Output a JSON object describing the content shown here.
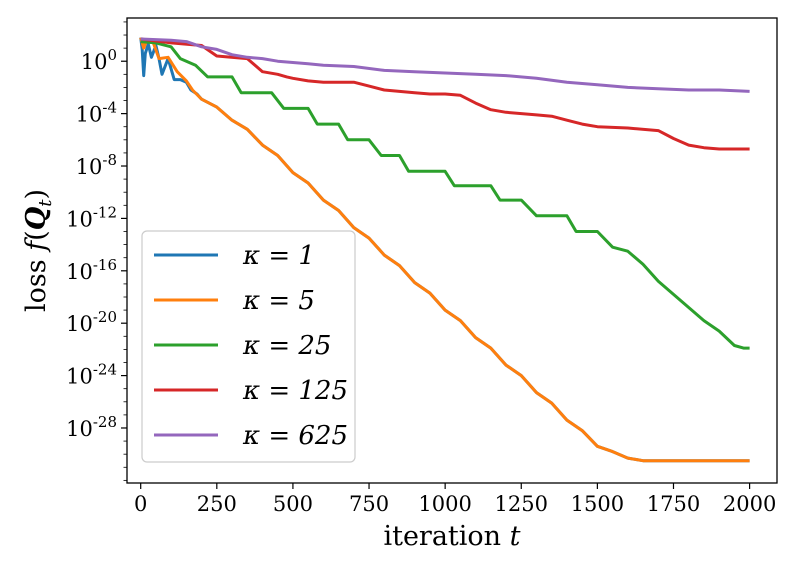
{
  "chart_data": {
    "type": "line",
    "xlabel": "iteration t",
    "ylabel": "loss f(Q_t)",
    "xlim": [
      -45,
      2090
    ],
    "ylim_log10": [
      -32.2,
      3.3
    ],
    "y_scale": "log",
    "grid": false,
    "legend_position": "bottom-left",
    "x_ticks": [
      0,
      250,
      500,
      750,
      1000,
      1250,
      1500,
      1750,
      2000
    ],
    "y_ticks": [
      {
        "exp": 0,
        "label": "10^0"
      },
      {
        "exp": -4,
        "label": "10^-4"
      },
      {
        "exp": -8,
        "label": "10^-8"
      },
      {
        "exp": -12,
        "label": "10^-12"
      },
      {
        "exp": -16,
        "label": "10^-16"
      },
      {
        "exp": -20,
        "label": "10^-20"
      },
      {
        "exp": -24,
        "label": "10^-24"
      },
      {
        "exp": -28,
        "label": "10^-28"
      }
    ],
    "series": [
      {
        "name": "κ = 1",
        "color": "#1f77b4",
        "points": [
          [
            0,
            1.8
          ],
          [
            5,
            0.9
          ],
          [
            10,
            -1.1
          ],
          [
            15,
            0.6
          ],
          [
            25,
            1.3
          ],
          [
            35,
            0.3
          ],
          [
            50,
            1.2
          ],
          [
            60,
            0.2
          ],
          [
            70,
            -1.0
          ],
          [
            90,
            0.2
          ],
          [
            110,
            -1.4
          ],
          [
            130,
            -1.4
          ],
          [
            150,
            -1.6
          ],
          [
            165,
            -2.2
          ],
          [
            185,
            -2.5
          ],
          [
            200,
            -2.9
          ],
          [
            250,
            -3.5
          ],
          [
            300,
            -4.5
          ],
          [
            350,
            -5.2
          ],
          [
            400,
            -6.4
          ],
          [
            450,
            -7.2
          ],
          [
            500,
            -8.5
          ],
          [
            550,
            -9.3
          ],
          [
            600,
            -10.6
          ],
          [
            650,
            -11.4
          ],
          [
            700,
            -12.7
          ],
          [
            750,
            -13.5
          ],
          [
            800,
            -14.8
          ],
          [
            850,
            -15.6
          ],
          [
            900,
            -16.9
          ],
          [
            950,
            -17.7
          ],
          [
            1000,
            -19.0
          ],
          [
            1050,
            -19.8
          ],
          [
            1100,
            -21.1
          ],
          [
            1150,
            -21.9
          ],
          [
            1200,
            -23.2
          ],
          [
            1250,
            -24.0
          ],
          [
            1300,
            -25.3
          ],
          [
            1350,
            -26.1
          ],
          [
            1400,
            -27.4
          ],
          [
            1450,
            -28.2
          ],
          [
            1500,
            -29.4
          ],
          [
            1550,
            -29.8
          ],
          [
            1600,
            -30.3
          ],
          [
            1650,
            -30.5
          ],
          [
            1700,
            -30.5
          ],
          [
            1800,
            -30.5
          ],
          [
            1900,
            -30.5
          ],
          [
            2000,
            -30.5
          ]
        ]
      },
      {
        "name": "κ = 5",
        "color": "#ff7f0e",
        "points": [
          [
            0,
            1.8
          ],
          [
            10,
            1.0
          ],
          [
            20,
            1.6
          ],
          [
            40,
            1.5
          ],
          [
            60,
            0.2
          ],
          [
            90,
            0.3
          ],
          [
            120,
            -0.8
          ],
          [
            150,
            -1.5
          ],
          [
            170,
            -2.2
          ],
          [
            200,
            -2.9
          ],
          [
            250,
            -3.5
          ],
          [
            300,
            -4.5
          ],
          [
            350,
            -5.2
          ],
          [
            400,
            -6.4
          ],
          [
            450,
            -7.2
          ],
          [
            500,
            -8.5
          ],
          [
            550,
            -9.3
          ],
          [
            600,
            -10.6
          ],
          [
            650,
            -11.4
          ],
          [
            700,
            -12.7
          ],
          [
            750,
            -13.5
          ],
          [
            800,
            -14.8
          ],
          [
            850,
            -15.6
          ],
          [
            900,
            -16.9
          ],
          [
            950,
            -17.7
          ],
          [
            1000,
            -19.0
          ],
          [
            1050,
            -19.8
          ],
          [
            1100,
            -21.1
          ],
          [
            1150,
            -21.9
          ],
          [
            1200,
            -23.2
          ],
          [
            1250,
            -24.0
          ],
          [
            1300,
            -25.3
          ],
          [
            1350,
            -26.1
          ],
          [
            1400,
            -27.4
          ],
          [
            1450,
            -28.2
          ],
          [
            1500,
            -29.4
          ],
          [
            1550,
            -29.8
          ],
          [
            1600,
            -30.3
          ],
          [
            1650,
            -30.5
          ],
          [
            1700,
            -30.5
          ],
          [
            1800,
            -30.5
          ],
          [
            1900,
            -30.5
          ],
          [
            2000,
            -30.5
          ]
        ]
      },
      {
        "name": "κ = 25",
        "color": "#2ca02c",
        "points": [
          [
            0,
            1.5
          ],
          [
            50,
            1.4
          ],
          [
            100,
            1.1
          ],
          [
            130,
            0.2
          ],
          [
            180,
            -0.3
          ],
          [
            220,
            -1.2
          ],
          [
            300,
            -1.2
          ],
          [
            330,
            -2.4
          ],
          [
            430,
            -2.4
          ],
          [
            470,
            -3.6
          ],
          [
            550,
            -3.6
          ],
          [
            580,
            -4.8
          ],
          [
            650,
            -4.8
          ],
          [
            680,
            -6.0
          ],
          [
            750,
            -6.0
          ],
          [
            790,
            -7.2
          ],
          [
            850,
            -7.2
          ],
          [
            880,
            -8.4
          ],
          [
            1000,
            -8.4
          ],
          [
            1030,
            -9.5
          ],
          [
            1150,
            -9.5
          ],
          [
            1180,
            -10.6
          ],
          [
            1250,
            -10.6
          ],
          [
            1300,
            -11.8
          ],
          [
            1400,
            -11.8
          ],
          [
            1430,
            -13.0
          ],
          [
            1500,
            -13.0
          ],
          [
            1550,
            -14.2
          ],
          [
            1600,
            -14.5
          ],
          [
            1650,
            -15.5
          ],
          [
            1700,
            -16.8
          ],
          [
            1750,
            -17.8
          ],
          [
            1800,
            -18.8
          ],
          [
            1850,
            -19.8
          ],
          [
            1900,
            -20.6
          ],
          [
            1950,
            -21.7
          ],
          [
            1980,
            -21.9
          ],
          [
            2000,
            -21.9
          ]
        ]
      },
      {
        "name": "κ = 125",
        "color": "#d62728",
        "points": [
          [
            0,
            1.7
          ],
          [
            100,
            1.4
          ],
          [
            200,
            1.2
          ],
          [
            250,
            0.4
          ],
          [
            350,
            0.2
          ],
          [
            400,
            -0.8
          ],
          [
            450,
            -1.0
          ],
          [
            480,
            -1.2
          ],
          [
            500,
            -1.3
          ],
          [
            550,
            -1.5
          ],
          [
            600,
            -1.6
          ],
          [
            700,
            -1.6
          ],
          [
            750,
            -1.9
          ],
          [
            800,
            -2.2
          ],
          [
            850,
            -2.3
          ],
          [
            900,
            -2.4
          ],
          [
            950,
            -2.5
          ],
          [
            1000,
            -2.5
          ],
          [
            1050,
            -2.6
          ],
          [
            1100,
            -3.2
          ],
          [
            1150,
            -3.7
          ],
          [
            1200,
            -3.9
          ],
          [
            1300,
            -4.1
          ],
          [
            1350,
            -4.2
          ],
          [
            1400,
            -4.5
          ],
          [
            1450,
            -4.8
          ],
          [
            1500,
            -5.0
          ],
          [
            1600,
            -5.1
          ],
          [
            1700,
            -5.3
          ],
          [
            1750,
            -5.9
          ],
          [
            1800,
            -6.4
          ],
          [
            1850,
            -6.6
          ],
          [
            1900,
            -6.7
          ],
          [
            2000,
            -6.7
          ]
        ]
      },
      {
        "name": "κ = 625",
        "color": "#9467bd",
        "points": [
          [
            0,
            1.7
          ],
          [
            100,
            1.6
          ],
          [
            150,
            1.5
          ],
          [
            200,
            1.1
          ],
          [
            250,
            0.9
          ],
          [
            300,
            0.5
          ],
          [
            350,
            0.3
          ],
          [
            400,
            0.2
          ],
          [
            450,
            0.0
          ],
          [
            500,
            -0.1
          ],
          [
            550,
            -0.2
          ],
          [
            600,
            -0.3
          ],
          [
            700,
            -0.4
          ],
          [
            800,
            -0.7
          ],
          [
            900,
            -0.8
          ],
          [
            1000,
            -0.9
          ],
          [
            1100,
            -1.0
          ],
          [
            1200,
            -1.1
          ],
          [
            1300,
            -1.3
          ],
          [
            1400,
            -1.6
          ],
          [
            1500,
            -1.8
          ],
          [
            1600,
            -2.0
          ],
          [
            1700,
            -2.1
          ],
          [
            1800,
            -2.2
          ],
          [
            1900,
            -2.2
          ],
          [
            2000,
            -2.3
          ]
        ]
      }
    ]
  }
}
